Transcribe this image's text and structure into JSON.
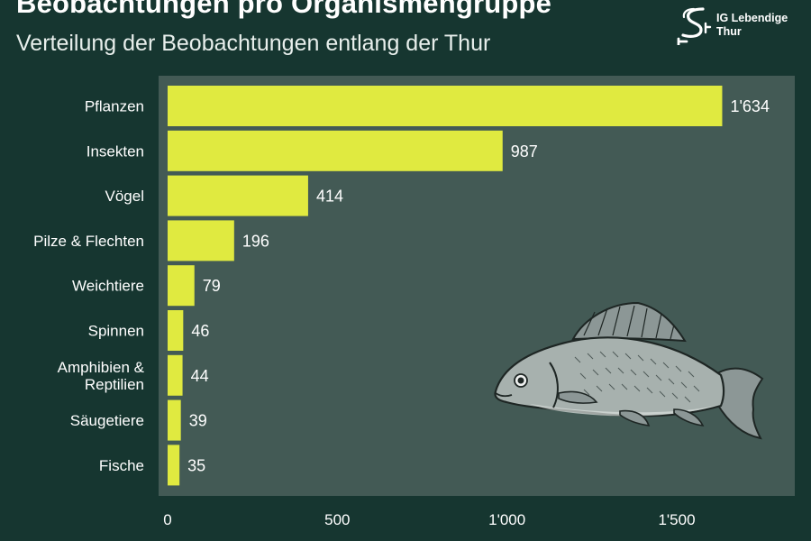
{
  "header": {
    "title": "Beobachtungen pro Organismengruppe",
    "subtitle": "Verteilung der Beobachtungen entlang der Thur"
  },
  "logo": {
    "line1": "IG Lebendige",
    "line2": "Thur"
  },
  "colors": {
    "background": "#163630",
    "plot_background": "#435a55",
    "bar": "#e0ea40",
    "text": "#ffffff"
  },
  "illustration": "fish-illustration",
  "chart_data": {
    "type": "bar",
    "orientation": "horizontal",
    "title": "Beobachtungen pro Organismengruppe",
    "subtitle": "Verteilung der Beobachtungen entlang der Thur",
    "categories": [
      [
        "Pflanzen"
      ],
      [
        "Insekten"
      ],
      [
        "Vögel"
      ],
      [
        "Pilze & Flechten"
      ],
      [
        "Weichtiere"
      ],
      [
        "Spinnen"
      ],
      [
        "Amphibien &",
        "Reptilien"
      ],
      [
        "Säugetiere"
      ],
      [
        "Fische"
      ]
    ],
    "values": [
      1634,
      987,
      414,
      196,
      79,
      46,
      44,
      39,
      35
    ],
    "value_labels": [
      "1'634",
      "987",
      "414",
      "196",
      "79",
      "46",
      "44",
      "39",
      "35"
    ],
    "x_ticks": [
      0,
      500,
      1000,
      1500
    ],
    "x_tick_labels": [
      "0",
      "500",
      "1'000",
      "1'500"
    ],
    "xlim": [
      0,
      1850
    ],
    "grid": false
  }
}
